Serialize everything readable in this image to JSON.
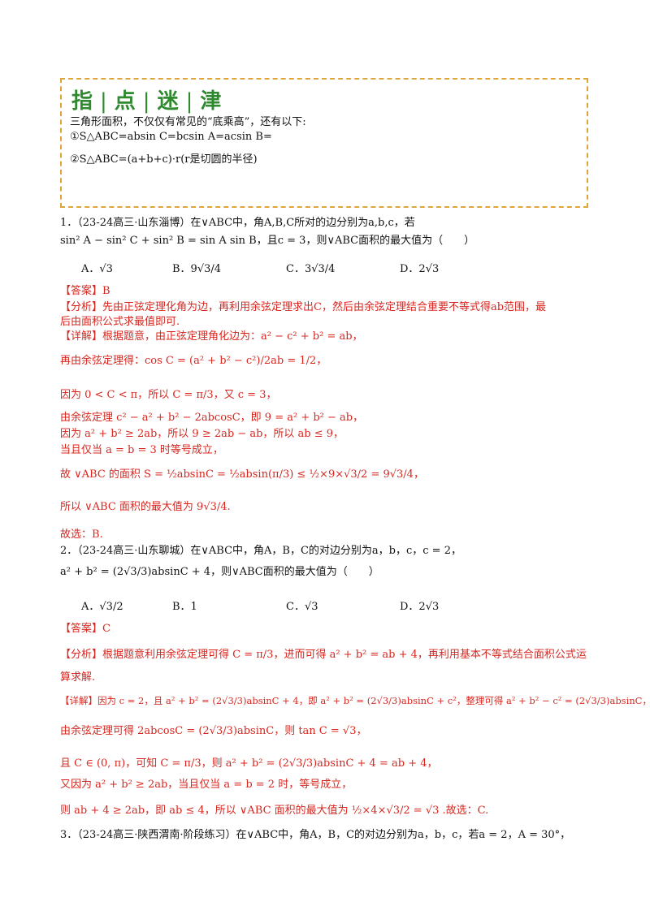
{
  "tip": {
    "title_chars": [
      "指",
      "点",
      "迷",
      "津"
    ],
    "line1": "三角形面积，不仅仅有常见的“底乘高”，还有以下:",
    "line2": "①S△ABC=absin C=bcsin A=acsin B=",
    "line3": "②S△ABC=(a+b+c)·r(r是切圆的半径)"
  },
  "q1": {
    "stem1": "1．（23-24高三·山东淄博）在∨ABC中，角A,B,C所对的边分别为a,b,c，若",
    "stem2": "sin² A − sin² C + sin² B = sin A sin B，且c = 3，则∨ABC面积的最大值为（　　）",
    "options": [
      "A．√3",
      "B．9√3/4",
      "C．3√3/4",
      "D．2√3"
    ],
    "answer_tag": "【答案】",
    "answer": "B",
    "analysis_tag": "【分析】",
    "analysis1": "先由正弦定理化角为边，再利用余弦定理求出C，然后由余弦定理结合重要不等式得ab范围，最",
    "analysis2": "后由面积公式求最值即可.",
    "detail_tag": "【详解】",
    "detail1": "根据题意，由正弦定理角化边为：a² − c² + b² = ab，",
    "detail2": "再由余弦定理得：cos C = (a² + b² − c²)/2ab = 1/2，",
    "detail3": "因为 0 < C < π，所以 C = π/3，又 c = 3，",
    "detail4": "由余弦定理 c² − a² + b² − 2abcosC，即 9 = a² + b² − ab，",
    "detail5": "因为 a² + b² ≥ 2ab，所以 9 ≥ 2ab − ab，所以 ab ≤ 9，",
    "detail6": "当且仅当 a = b = 3 时等号成立，",
    "detail7": "故 ∨ABC 的面积 S = ½absinC = ½absin(π/3) ≤ ½×9×√3/2 = 9√3/4，",
    "detail8": "所以 ∨ABC 面积的最大值为 9√3/4.",
    "choose": "故选：B."
  },
  "q2": {
    "stem1": "2．（23-24高三·山东聊城）在∨ABC中，角A，B，C的对边分别为a，b，c，c = 2，",
    "stem2": "a² + b² = (2√3/3)absinC + 4，则∨ABC面积的最大值为（　　）",
    "options": [
      "A．√3/2",
      "B．1",
      "C．√3",
      "D．2√3"
    ],
    "answer_tag": "【答案】",
    "answer": "C",
    "analysis_tag": "【分析】",
    "analysis1": "根据题意利用余弦定理可得 C = π/3，进而可得 a² + b² = ab + 4，再利用基本不等式结合面积公式运",
    "analysis2": "算求解.",
    "detail_tag": "【详解】",
    "detail1": "因为 c = 2，且 a² + b² = (2√3/3)absinC + 4，即 a² + b² = (2√3/3)absinC + c²，整理可得 a² + b² − c² = (2√3/3)absinC，",
    "detail2": "由余弦定理可得 2abcosC = (2√3/3)absinC，则 tan C = √3，",
    "detail3": "且 C ∈ (0, π)，可知 C = π/3，则 a² + b² = (2√3/3)absinC + 4 = ab + 4，",
    "detail4": "又因为 a² + b² ≥ 2ab，当且仅当 a = b = 2 时，等号成立，",
    "detail5": "则 ab + 4 ≥ 2ab，即 ab ≤ 4，所以 ∨ABC 面积的最大值为 ½×4×√3/2 = √3 .故选：C."
  },
  "q3": {
    "stem1": "3．（23-24高三·陕西渭南·阶段练习）在∨ABC中，角A，B，C的对边分别为a，b，c，若a = 2，A = 30°，"
  }
}
